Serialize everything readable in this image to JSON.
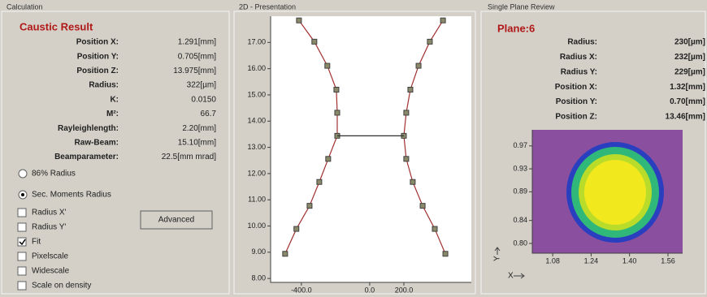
{
  "calculation": {
    "title": "Calculation",
    "heading": "Caustic Result",
    "rows": [
      [
        "Position X:",
        "1.291[mm]"
      ],
      [
        "Position Y:",
        "0.705[mm]"
      ],
      [
        "Position Z:",
        "13.975[mm]"
      ],
      [
        "Radius:",
        "322[µm]"
      ],
      [
        "K:",
        "0.0150"
      ],
      [
        "M²:",
        "66.7"
      ],
      [
        "Rayleighlength:",
        "2.20[mm]"
      ],
      [
        "Raw-Beam:",
        "15.10[mm]"
      ],
      [
        "Beamparameter:",
        "22.5[mm mrad]"
      ]
    ],
    "radius_options": [
      {
        "label": "86% Radius",
        "selected": false
      },
      {
        "label": "Sec. Moments Radius",
        "selected": true
      }
    ],
    "checkboxes": [
      {
        "label": "Radius X'",
        "checked": false
      },
      {
        "label": "Radius Y'",
        "checked": false
      },
      {
        "label": "Fit",
        "checked": true
      },
      {
        "label": "Pixelscale",
        "checked": false
      },
      {
        "label": "Widescale",
        "checked": false
      },
      {
        "label": "Scale on density",
        "checked": false
      }
    ],
    "button": "Advanced"
  },
  "presentation": {
    "title": "2D - Presentation"
  },
  "review": {
    "title": "Single Plane Review",
    "plane": "Plane:6",
    "rows": [
      [
        "Radius:",
        "230[µm]"
      ],
      [
        "Radius X:",
        "232[µm]"
      ],
      [
        "Radius Y:",
        "229[µm]"
      ],
      [
        "Position X:",
        "1.32[mm]"
      ],
      [
        "Position Y:",
        "0.70[mm]"
      ],
      [
        "Position Z:",
        "13.46[mm]"
      ]
    ],
    "x_axis_label": "X",
    "y_axis_label": "Y"
  },
  "chart_data": [
    {
      "type": "line",
      "xlim": [
        -580,
        595
      ],
      "ylim": [
        7.85,
        18.0
      ],
      "xticks": [
        {
          "value": -400,
          "label": "-400.0"
        },
        {
          "value": 0,
          "label": "0.0"
        },
        {
          "value": 200,
          "label": "200.0"
        }
      ],
      "yticks": [
        {
          "value": 8,
          "label": "8.00"
        },
        {
          "value": 9,
          "label": "9.00"
        },
        {
          "value": 10,
          "label": "10.00"
        },
        {
          "value": 11,
          "label": "11.00"
        },
        {
          "value": 12,
          "label": "12.00"
        },
        {
          "value": 13,
          "label": "13.00"
        },
        {
          "value": 14,
          "label": "14.00"
        },
        {
          "value": 15,
          "label": "15.00"
        },
        {
          "value": 16,
          "label": "16.00"
        },
        {
          "value": 17,
          "label": "17.00"
        }
      ],
      "series": [
        {
          "color": "#a03030",
          "markers": true,
          "x": [
            -495,
            -429,
            -352,
            -295,
            -243,
            -190,
            -190,
            -195,
            -248,
            -324,
            -414
          ],
          "values": [
            8.94,
            9.89,
            10.77,
            11.68,
            12.56,
            13.44,
            14.32,
            15.2,
            16.11,
            17.03,
            17.84
          ]
        },
        {
          "color": "#a03030",
          "markers": true,
          "x": [
            443,
            381,
            310,
            252,
            214,
            200,
            214,
            238,
            286,
            352,
            429
          ],
          "values": [
            8.94,
            9.89,
            10.77,
            11.68,
            12.56,
            13.44,
            14.32,
            15.2,
            16.11,
            17.03,
            17.84
          ]
        },
        {
          "color": "#303030",
          "markers": false,
          "x": [
            -190,
            200
          ],
          "values": [
            13.44,
            13.44
          ]
        }
      ]
    },
    {
      "type": "heatmap",
      "xlim": [
        0.995,
        1.621
      ],
      "ylim": [
        0.783,
        0.998
      ],
      "xticks": [
        1.08,
        1.24,
        {
          "value": 1.4,
          "label": "1.40"
        },
        1.56
      ],
      "yticks": [
        0.97,
        0.93,
        0.89,
        0.84,
        {
          "value": 0.8,
          "label": "0.80"
        }
      ]
    }
  ]
}
